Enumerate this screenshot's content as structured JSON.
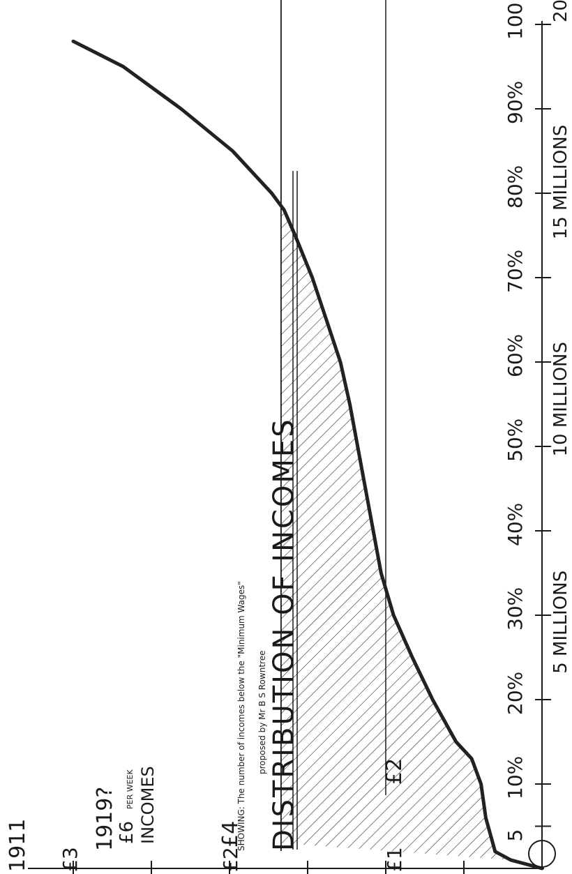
{
  "chart_data": {
    "type": "area",
    "title": "DISTRIBUTION OF INCOMES",
    "subtitle_line1": "SHOWING:  The number of incomes below the \"Minimum Wages\"",
    "subtitle_line2": "proposed by Mr B S Rowntree",
    "year_1911": "1911",
    "year_1919": "1919?",
    "ylabel": "INCOMES",
    "x_pct_ticks": [
      "5",
      "10%",
      "20%",
      "30%",
      "40%",
      "50%",
      "60%",
      "70%",
      "80%",
      "90%",
      "100"
    ],
    "x_pct_tick_values": [
      5,
      10,
      20,
      30,
      40,
      50,
      60,
      70,
      80,
      90,
      100
    ],
    "x_million_labels": [
      {
        "value": 5,
        "label": "5 MILLIONS"
      },
      {
        "value": 10,
        "label": "10 MILLIONS"
      },
      {
        "value": 15,
        "label": "15 MILLIONS"
      },
      {
        "value": 20,
        "label": "20"
      }
    ],
    "y_ticks_1911": [
      {
        "value": 1,
        "label": "£1"
      },
      {
        "value": 2,
        "label": "£2"
      },
      {
        "value": 3,
        "label": "£3"
      }
    ],
    "y_ticks_1919": [
      {
        "value": 2,
        "label": "£2"
      },
      {
        "value": 4,
        "label": "£4"
      },
      {
        "value": 6,
        "label": "£6",
        "suffix": "PER WEEK"
      }
    ],
    "minimum_wage_lines": [
      {
        "value_1911": 1.0,
        "label": "£2 line (1919)"
      },
      {
        "value_1911": 1.67,
        "label": "£4 line (1919)"
      }
    ],
    "series": [
      {
        "x": [
          0,
          1,
          2,
          4,
          6,
          10,
          13,
          15,
          20,
          25,
          30,
          35,
          40,
          45,
          50,
          55,
          60,
          65,
          70,
          75,
          78,
          80,
          85,
          90,
          95,
          98
        ],
        "y": [
          0.0,
          0.2,
          0.3,
          0.33,
          0.36,
          0.39,
          0.45,
          0.55,
          0.7,
          0.83,
          0.95,
          1.03,
          1.08,
          1.13,
          1.18,
          1.23,
          1.29,
          1.38,
          1.47,
          1.58,
          1.65,
          1.73,
          1.98,
          2.31,
          2.68,
          3.0
        ]
      }
    ],
    "ylim": [
      0,
      3
    ],
    "xlim": [
      0,
      100
    ],
    "shaded_region": "area under curve below the £4 (1919) line"
  }
}
